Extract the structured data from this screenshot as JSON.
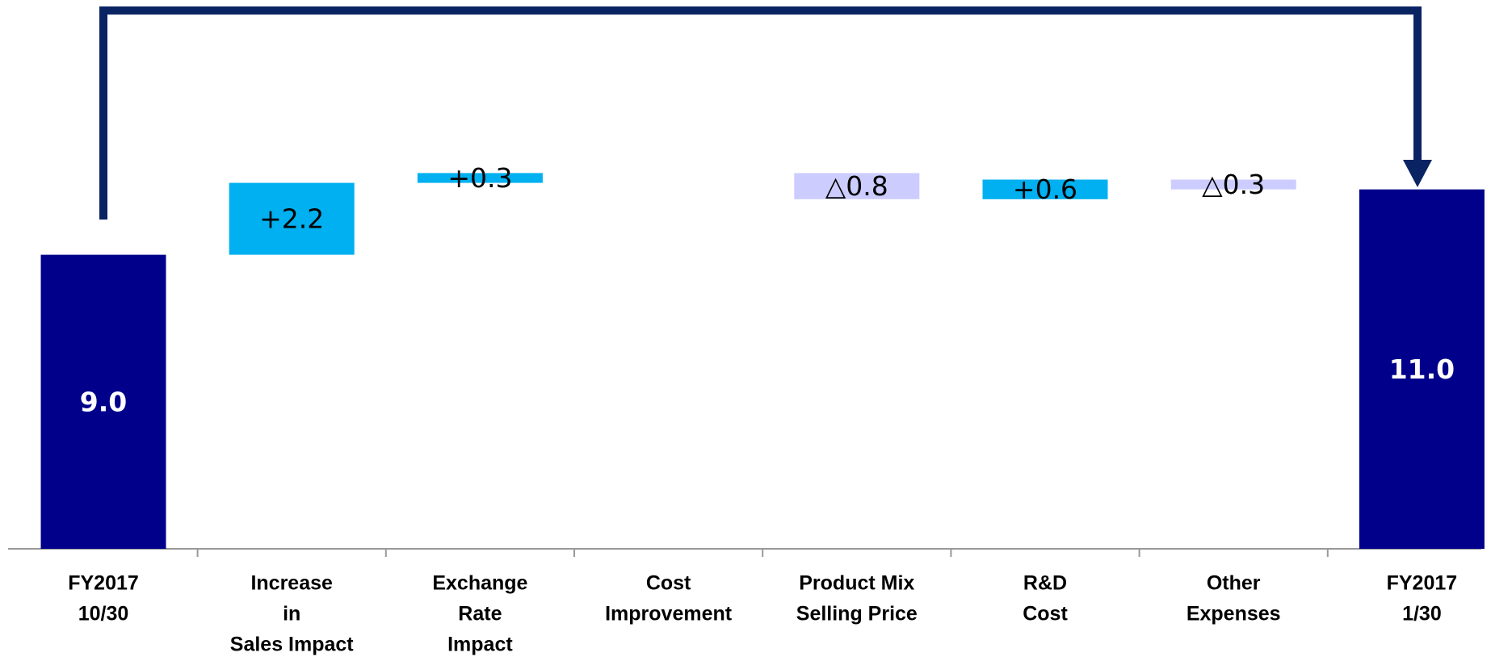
{
  "chart_data": {
    "type": "waterfall",
    "categories": [
      [
        "FY2017",
        "10/30"
      ],
      [
        "Increase",
        "in",
        "Sales Impact"
      ],
      [
        "Exchange",
        "Rate",
        "Impact"
      ],
      [
        "Cost",
        "Improvement"
      ],
      [
        "Product Mix",
        "Selling Price"
      ],
      [
        "R&D",
        "Cost"
      ],
      [
        "Other",
        "Expenses"
      ],
      [
        "FY2017",
        "1/30"
      ]
    ],
    "measure": [
      "absolute",
      "relative",
      "relative",
      "relative",
      "relative",
      "relative",
      "relative",
      "absolute"
    ],
    "values": [
      9.0,
      2.2,
      0.3,
      null,
      -0.8,
      0.6,
      -0.3,
      11.0
    ],
    "value_labels": [
      "9.0",
      "+2.2",
      "+0.3",
      null,
      "△0.8",
      "+0.6",
      "△0.3",
      "11.0"
    ],
    "colors": {
      "total": "#00008b",
      "increase": "#00b0f0",
      "decrease": "#ccccff"
    },
    "ylim": [
      0,
      16.5
    ]
  }
}
